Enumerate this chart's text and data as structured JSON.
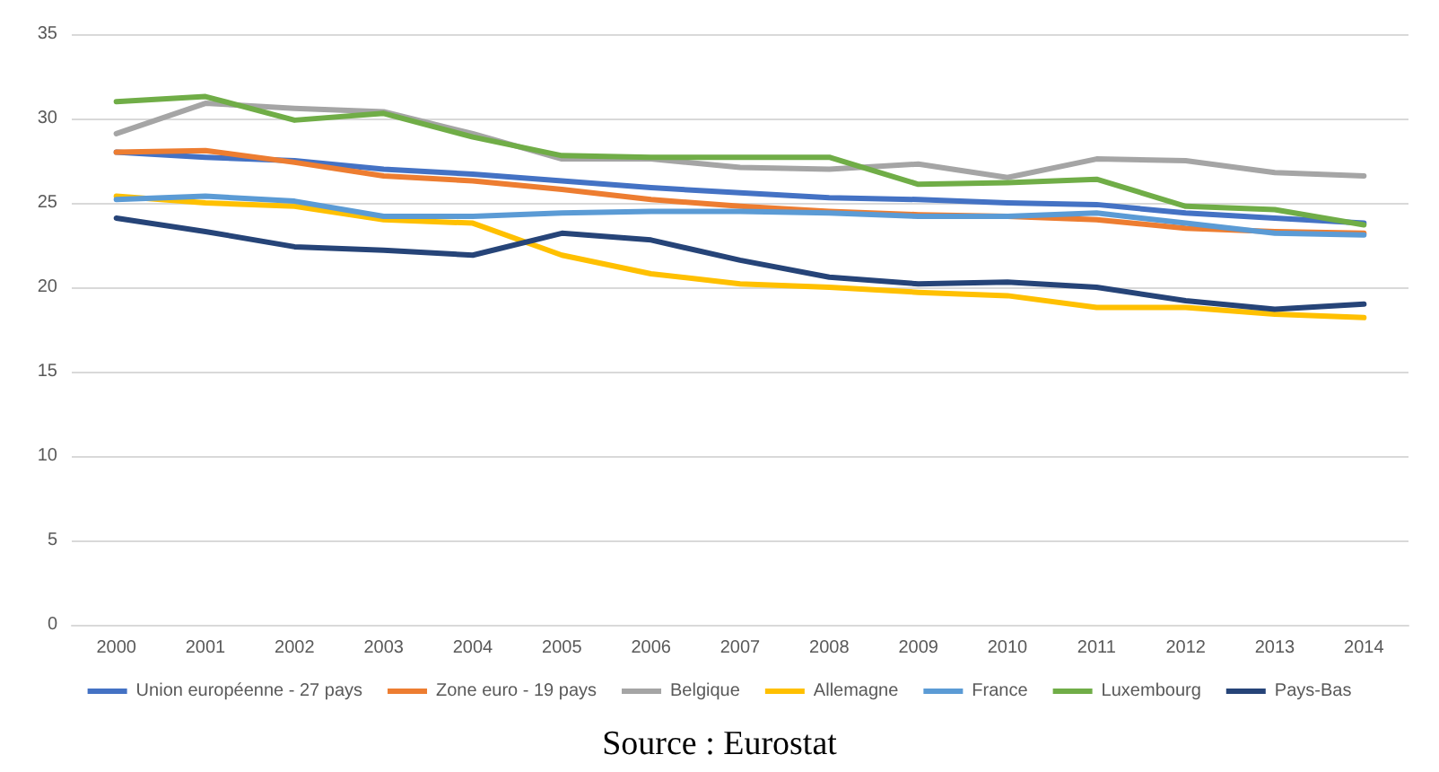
{
  "chart_data": {
    "type": "line",
    "categories": [
      "2000",
      "2001",
      "2002",
      "2003",
      "2004",
      "2005",
      "2006",
      "2007",
      "2008",
      "2009",
      "2010",
      "2011",
      "2012",
      "2013",
      "2014"
    ],
    "series": [
      {
        "name": "Union européenne - 27 pays",
        "color": "#4472c4",
        "values": [
          28,
          27.7,
          27.5,
          27,
          26.7,
          26.3,
          25.9,
          25.6,
          25.3,
          25.2,
          25,
          24.9,
          24.4,
          24.1,
          23.8
        ]
      },
      {
        "name": "Zone euro - 19 pays",
        "color": "#ed7d31",
        "values": [
          28,
          28.1,
          27.4,
          26.6,
          26.3,
          25.8,
          25.2,
          24.8,
          24.5,
          24.3,
          24.2,
          24,
          23.5,
          23.3,
          23.2
        ]
      },
      {
        "name": "Belgique",
        "color": "#a5a5a5",
        "values": [
          29.1,
          30.9,
          30.6,
          30.4,
          29.1,
          27.6,
          27.6,
          27.1,
          27,
          27.3,
          26.5,
          27.6,
          27.5,
          26.8,
          26.6
        ]
      },
      {
        "name": "Allemagne",
        "color": "#ffc000",
        "values": [
          25.4,
          25,
          24.8,
          24,
          23.8,
          21.9,
          20.8,
          20.2,
          20,
          19.7,
          19.5,
          18.8,
          18.8,
          18.4,
          18.2
        ]
      },
      {
        "name": "France",
        "color": "#5b9bd5",
        "values": [
          25.2,
          25.4,
          25.1,
          24.2,
          24.2,
          24.4,
          24.5,
          24.5,
          24.4,
          24.2,
          24.2,
          24.4,
          23.8,
          23.2,
          23.1
        ]
      },
      {
        "name": "Luxembourg",
        "color": "#70ad47",
        "values": [
          31,
          31.3,
          29.9,
          30.3,
          28.9,
          27.8,
          27.7,
          27.7,
          27.7,
          26.1,
          26.2,
          26.4,
          24.8,
          24.6,
          23.7
        ]
      },
      {
        "name": "Pays-Bas",
        "color": "#264478",
        "values": [
          24.1,
          23.3,
          22.4,
          22.2,
          21.9,
          23.2,
          22.8,
          21.6,
          20.6,
          20.2,
          20.3,
          20,
          19.2,
          18.7,
          19
        ]
      }
    ],
    "ylim": [
      0,
      35
    ],
    "yticks": [
      0,
      5,
      10,
      15,
      20,
      25,
      30,
      35
    ],
    "grid": "y",
    "legend": "bottom",
    "marker": "none",
    "line_style": "solid",
    "annotations": [
      "Source : Eurostat"
    ]
  }
}
